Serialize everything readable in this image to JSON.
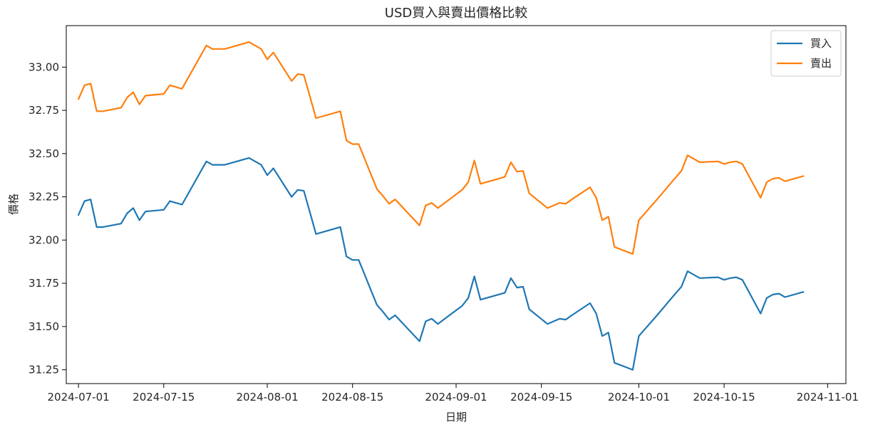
{
  "chart_data": {
    "type": "line",
    "title": "USD買入與賣出價格比較",
    "xlabel": "日期",
    "ylabel": "價格",
    "x_ticks": [
      "2024-07-01",
      "2024-07-15",
      "2024-08-01",
      "2024-08-15",
      "2024-09-01",
      "2024-09-15",
      "2024-10-01",
      "2024-10-15",
      "2024-11-01"
    ],
    "y_ticks": [
      "31.25",
      "31.50",
      "31.75",
      "32.00",
      "32.25",
      "32.50",
      "32.75",
      "33.00"
    ],
    "xlim": [
      "2024-06-29",
      "2024-11-04"
    ],
    "ylim": [
      31.17,
      33.24
    ],
    "grid": false,
    "legend_position": "top-right",
    "colors": {
      "buy": "#1f77b4",
      "sell": "#ff7f0e"
    },
    "x": [
      "2024-07-01",
      "2024-07-02",
      "2024-07-03",
      "2024-07-04",
      "2024-07-05",
      "2024-07-08",
      "2024-07-09",
      "2024-07-10",
      "2024-07-11",
      "2024-07-12",
      "2024-07-15",
      "2024-07-16",
      "2024-07-17",
      "2024-07-18",
      "2024-07-22",
      "2024-07-23",
      "2024-07-24",
      "2024-07-25",
      "2024-07-26",
      "2024-07-29",
      "2024-07-30",
      "2024-07-31",
      "2024-08-01",
      "2024-08-02",
      "2024-08-05",
      "2024-08-06",
      "2024-08-07",
      "2024-08-08",
      "2024-08-09",
      "2024-08-13",
      "2024-08-14",
      "2024-08-15",
      "2024-08-16",
      "2024-08-19",
      "2024-08-20",
      "2024-08-21",
      "2024-08-22",
      "2024-08-26",
      "2024-08-27",
      "2024-08-28",
      "2024-08-29",
      "2024-09-02",
      "2024-09-03",
      "2024-09-04",
      "2024-09-05",
      "2024-09-09",
      "2024-09-10",
      "2024-09-11",
      "2024-09-12",
      "2024-09-13",
      "2024-09-16",
      "2024-09-18",
      "2024-09-19",
      "2024-09-20",
      "2024-09-23",
      "2024-09-24",
      "2024-09-25",
      "2024-09-26",
      "2024-09-27",
      "2024-09-30",
      "2024-10-01",
      "2024-10-04",
      "2024-10-07",
      "2024-10-08",
      "2024-10-09",
      "2024-10-11",
      "2024-10-14",
      "2024-10-15",
      "2024-10-16",
      "2024-10-17",
      "2024-10-18",
      "2024-10-21",
      "2024-10-22",
      "2024-10-23",
      "2024-10-24",
      "2024-10-25",
      "2024-10-28"
    ],
    "series": [
      {
        "name": "買入",
        "values": [
          32.145,
          32.225,
          32.235,
          32.075,
          32.075,
          32.095,
          32.155,
          32.185,
          32.115,
          32.165,
          32.175,
          32.225,
          32.215,
          32.205,
          32.455,
          32.435,
          32.435,
          32.435,
          32.445,
          32.475,
          32.455,
          32.435,
          32.375,
          32.415,
          32.25,
          32.29,
          32.285,
          32.16,
          32.035,
          32.075,
          31.905,
          31.885,
          31.885,
          31.625,
          31.585,
          31.54,
          31.565,
          31.415,
          31.53,
          31.545,
          31.515,
          31.62,
          31.665,
          31.79,
          31.655,
          31.695,
          31.78,
          31.725,
          31.73,
          31.6,
          31.515,
          31.545,
          31.54,
          31.565,
          31.635,
          31.575,
          31.445,
          31.465,
          31.29,
          31.25,
          31.445,
          31.565,
          31.69,
          31.73,
          31.82,
          31.78,
          31.785,
          31.77,
          31.78,
          31.785,
          31.77,
          31.575,
          31.665,
          31.685,
          31.69,
          31.67,
          31.7
        ]
      },
      {
        "name": "賣出",
        "values": [
          32.815,
          32.895,
          32.905,
          32.745,
          32.745,
          32.765,
          32.825,
          32.855,
          32.785,
          32.835,
          32.845,
          32.895,
          32.885,
          32.875,
          33.125,
          33.105,
          33.105,
          33.105,
          33.115,
          33.145,
          33.125,
          33.105,
          33.045,
          33.085,
          32.92,
          32.96,
          32.955,
          32.83,
          32.705,
          32.745,
          32.575,
          32.555,
          32.555,
          32.295,
          32.255,
          32.21,
          32.235,
          32.085,
          32.2,
          32.215,
          32.185,
          32.29,
          32.335,
          32.46,
          32.325,
          32.365,
          32.45,
          32.395,
          32.4,
          32.27,
          32.185,
          32.215,
          32.21,
          32.235,
          32.305,
          32.245,
          32.115,
          32.135,
          31.96,
          31.92,
          32.115,
          32.235,
          32.36,
          32.4,
          32.49,
          32.45,
          32.455,
          32.44,
          32.45,
          32.455,
          32.44,
          32.245,
          32.335,
          32.355,
          32.36,
          32.34,
          32.37
        ]
      }
    ]
  }
}
